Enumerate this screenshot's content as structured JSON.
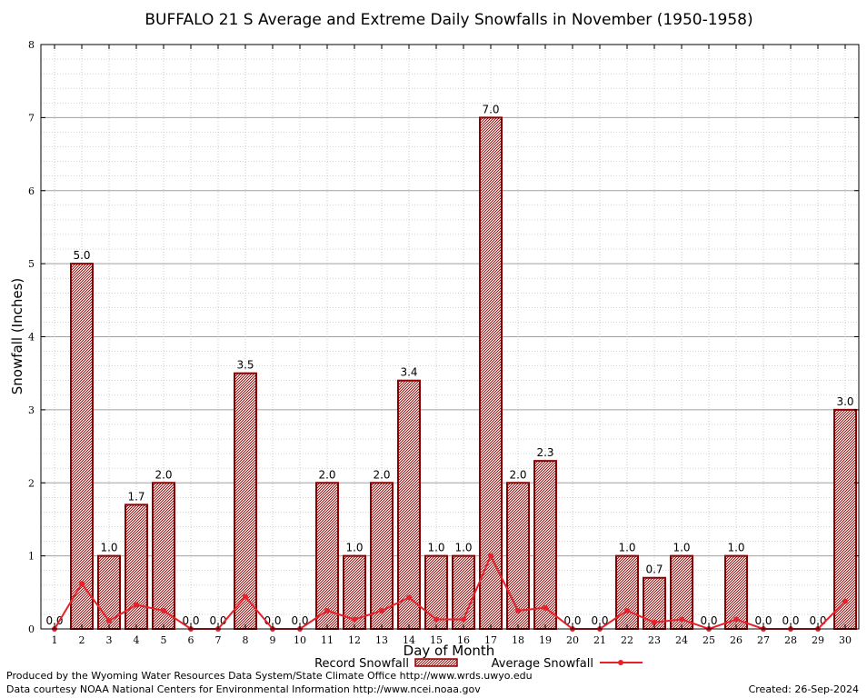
{
  "chart_data": {
    "type": "bar",
    "title": "BUFFALO 21 S Average and Extreme Daily Snowfalls in November (1950-1958)",
    "xlabel": "Day of Month",
    "ylabel": "Snowfall (Inches)",
    "ylim": [
      0,
      8
    ],
    "yticks": [
      "0",
      "1",
      "2",
      "3",
      "4",
      "5",
      "6",
      "7",
      "8"
    ],
    "categories": [
      "1",
      "2",
      "3",
      "4",
      "5",
      "6",
      "7",
      "8",
      "9",
      "10",
      "11",
      "12",
      "13",
      "14",
      "15",
      "16",
      "17",
      "18",
      "19",
      "20",
      "21",
      "22",
      "23",
      "24",
      "25",
      "26",
      "27",
      "28",
      "29",
      "30"
    ],
    "series": [
      {
        "name": "Record Snowfall",
        "kind": "bar",
        "values": [
          0.0,
          5.0,
          1.0,
          1.7,
          2.0,
          0.0,
          0.0,
          3.5,
          0.0,
          0.0,
          2.0,
          1.0,
          2.0,
          3.4,
          1.0,
          1.0,
          7.0,
          2.0,
          2.3,
          0.0,
          0.0,
          1.0,
          0.7,
          1.0,
          0.0,
          1.0,
          0.0,
          0.0,
          0.0,
          3.0
        ],
        "labels": [
          "0.0",
          "5.0",
          "1.0",
          "1.7",
          "2.0",
          "0.0",
          "0.0",
          "3.5",
          "0.0",
          "0.0",
          "2.0",
          "1.0",
          "2.0",
          "3.4",
          "1.0",
          "1.0",
          "7.0",
          "2.0",
          "2.3",
          "0.0",
          "0.0",
          "1.0",
          "0.7",
          "1.0",
          "0.0",
          "1.0",
          "0.0",
          "0.0",
          "0.0",
          "3.0"
        ]
      },
      {
        "name": "Average Snowfall",
        "kind": "line",
        "values": [
          0.0,
          0.62,
          0.11,
          0.33,
          0.25,
          0.0,
          0.0,
          0.44,
          0.0,
          0.0,
          0.25,
          0.13,
          0.25,
          0.43,
          0.13,
          0.13,
          1.0,
          0.25,
          0.29,
          0.0,
          0.0,
          0.25,
          0.09,
          0.13,
          0.0,
          0.13,
          0.0,
          0.0,
          0.0,
          0.38
        ]
      }
    ],
    "grid": true,
    "legend": "bottom-center",
    "colors": {
      "bar_edge": "#8b0000",
      "bar_fill": "#c89090",
      "line": "#e8202a",
      "grid": "#a0a0a0"
    }
  },
  "footer": {
    "produced_by": "Produced by the Wyoming Water Resources Data System/State Climate Office http://www.wrds.uwyo.edu",
    "data_courtesy": "Data courtesy NOAA National Centers for Environmental Information http://www.ncei.noaa.gov",
    "created": "Created:  26-Sep-2024"
  }
}
